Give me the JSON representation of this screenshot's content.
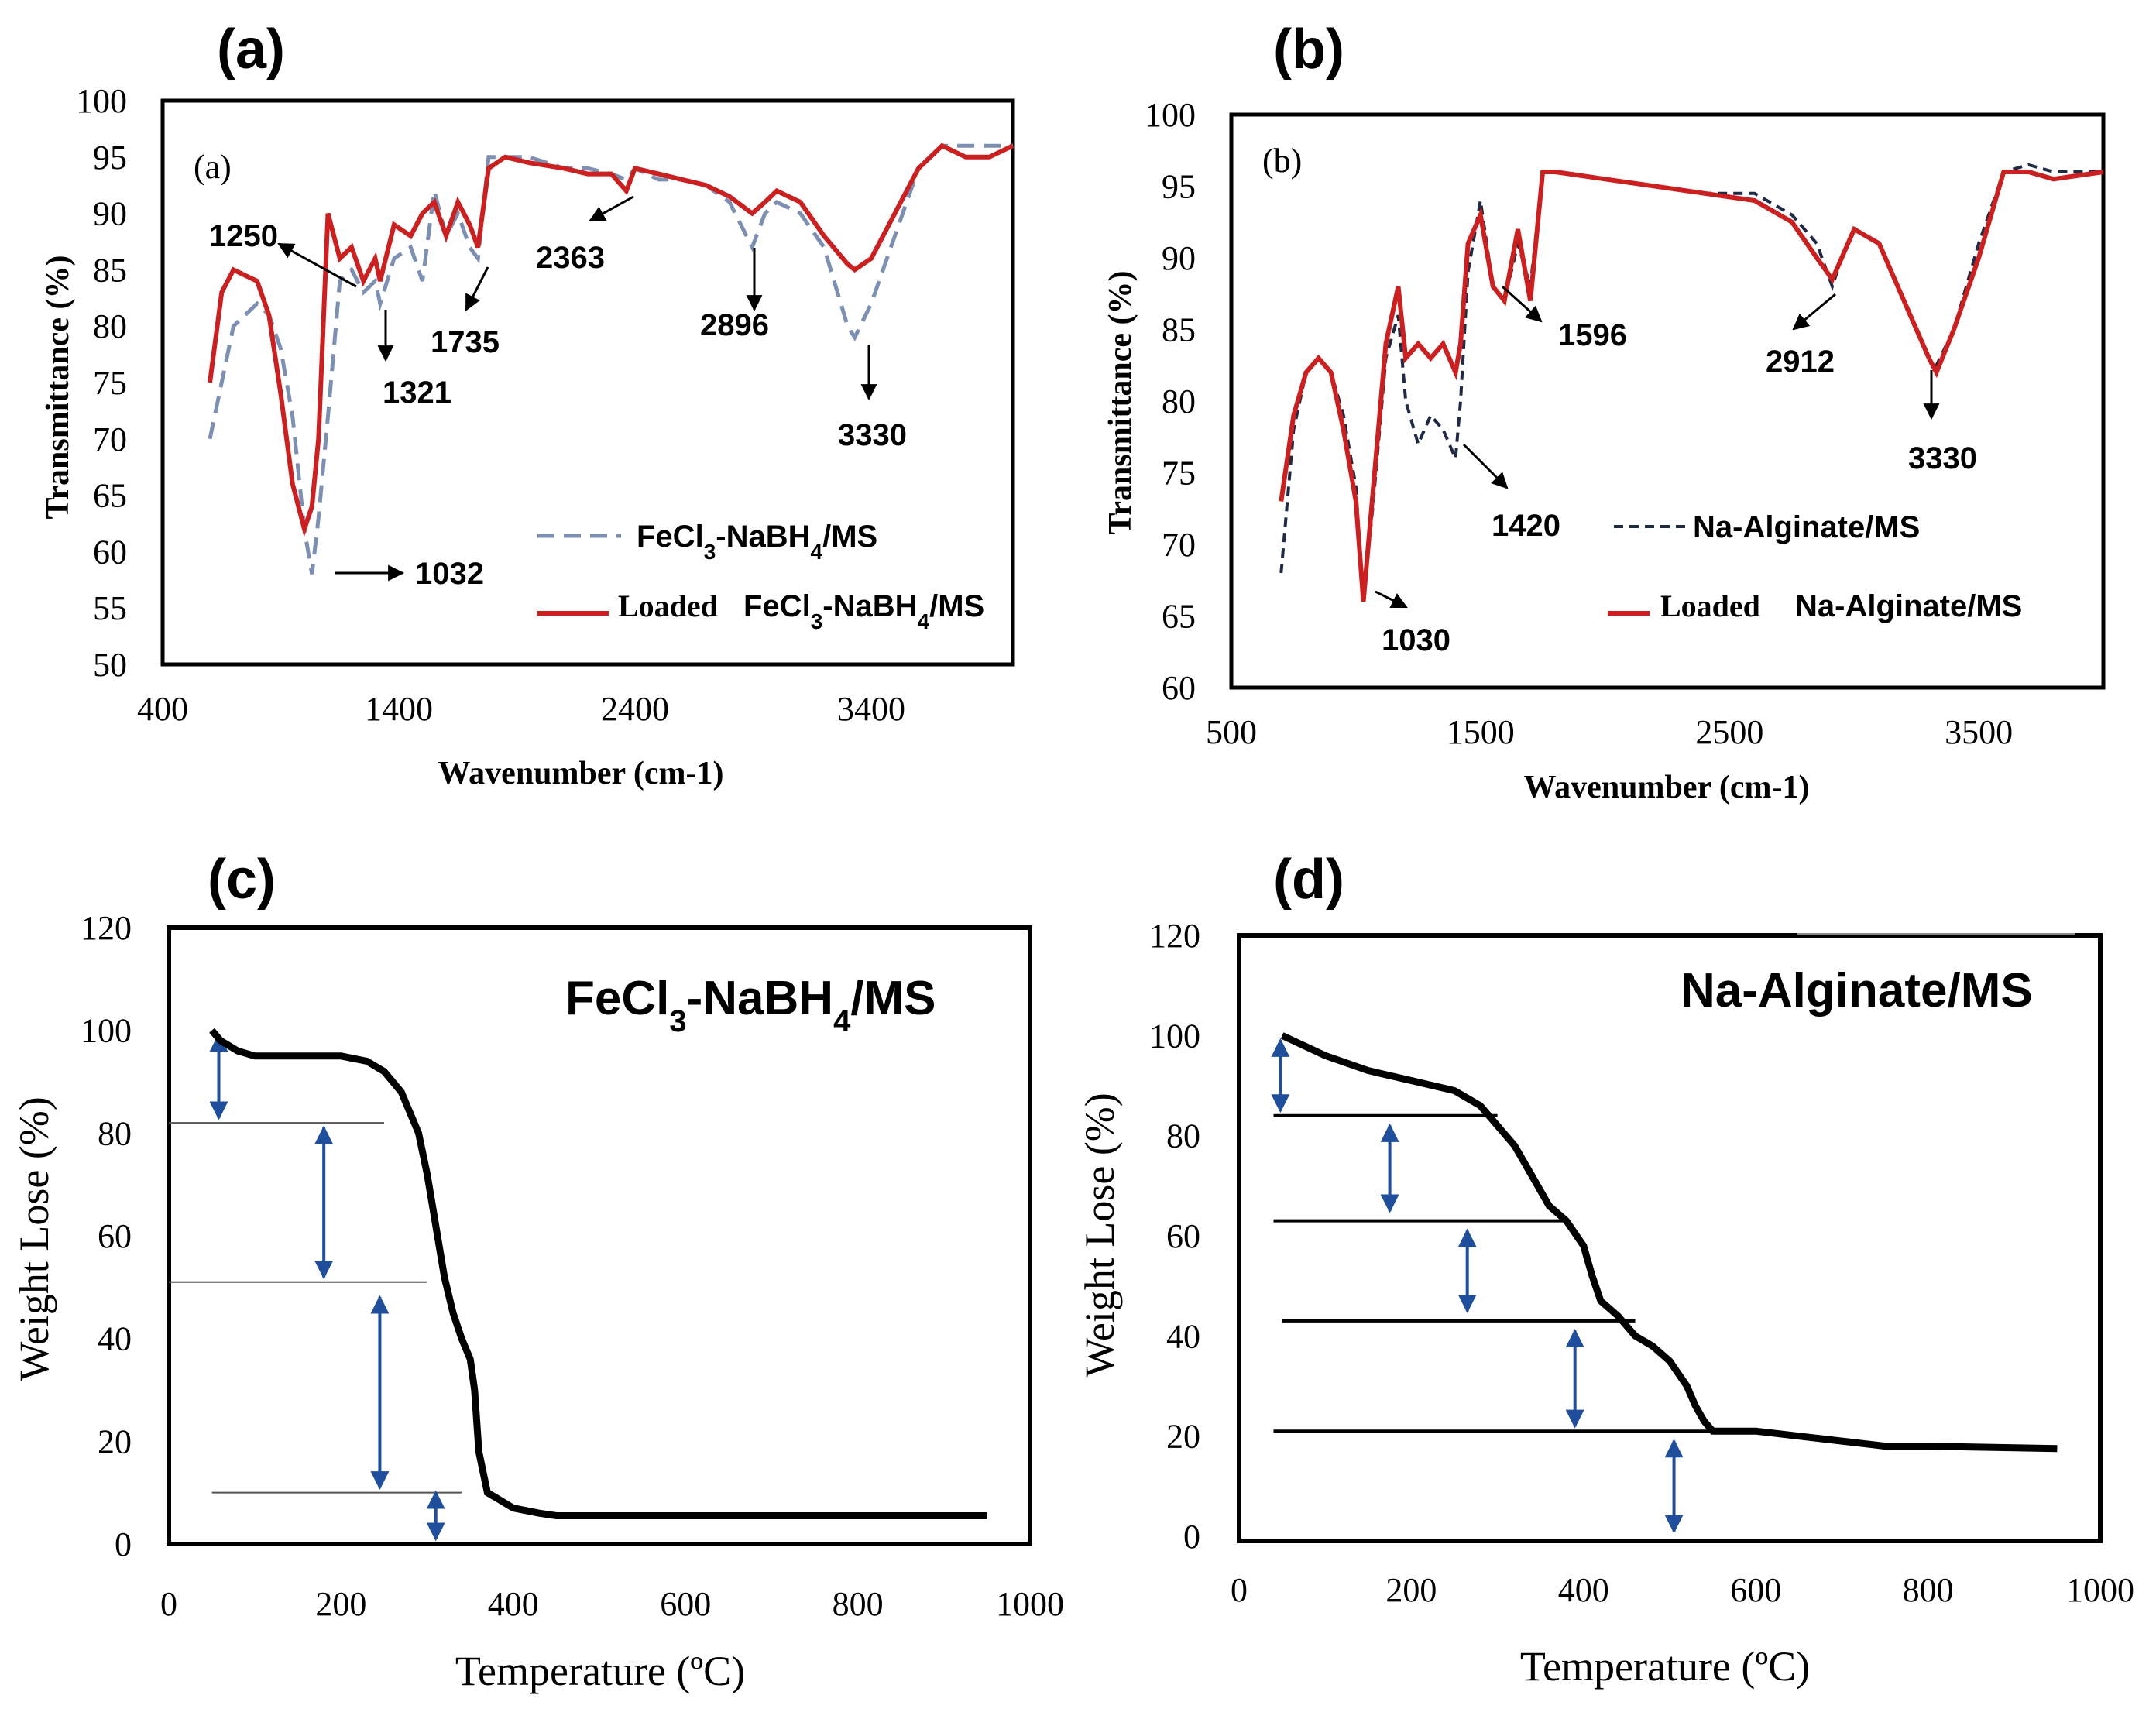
{
  "colors": {
    "red": "#cc1f1f",
    "blue_dashed": "#7d8fb3",
    "navy_dashed": "#1f2a44",
    "arrow_blue": "#1f4e9c",
    "black": "#000000"
  },
  "chart_data": [
    {
      "id": "a",
      "type": "line",
      "panel_label": "(a)",
      "inner_label": "(a)",
      "xlabel": "Wavenumber (cm-1)",
      "ylabel": "Transmittance (%)",
      "xlim": [
        400,
        4000
      ],
      "ylim": [
        50,
        100
      ],
      "xticks": [
        "400",
        "1400",
        "2400",
        "3400"
      ],
      "xtick_values": [
        400,
        1400,
        2400,
        3400
      ],
      "yticks": [
        "50",
        "55",
        "60",
        "65",
        "70",
        "75",
        "80",
        "85",
        "90",
        "95",
        "100"
      ],
      "ytick_values": [
        50,
        55,
        60,
        65,
        70,
        75,
        80,
        85,
        90,
        95,
        100
      ],
      "series": [
        {
          "name": "FeCl3-NaBH4/MS",
          "style": "dashed",
          "color": "#7d8fb3",
          "x": [
            600,
            700,
            800,
            850,
            900,
            950,
            1000,
            1032,
            1060,
            1100,
            1150,
            1200,
            1250,
            1300,
            1321,
            1380,
            1450,
            1500,
            1550,
            1600,
            1650,
            1700,
            1735,
            1780,
            1850,
            1950,
            2100,
            2200,
            2300,
            2363,
            2400,
            2500,
            2600,
            2700,
            2800,
            2896,
            2950,
            3000,
            3100,
            3200,
            3300,
            3330,
            3400,
            3500,
            3600,
            3700,
            3800,
            3900,
            4000
          ],
          "y": [
            70,
            80,
            82,
            81,
            78,
            72,
            62,
            58,
            63,
            72,
            84,
            85,
            83,
            84,
            82,
            86,
            87,
            84,
            92,
            88,
            90,
            87,
            86,
            95,
            95,
            95,
            94,
            94,
            93.5,
            93,
            94,
            93,
            93,
            92.5,
            91,
            87,
            90,
            91,
            90,
            87,
            80,
            79,
            82,
            88,
            94,
            96,
            96,
            96,
            96
          ]
        },
        {
          "name": "Loaded FeCl3-NaBH4/MS",
          "style": "solid",
          "color": "#cc1f1f",
          "x": [
            600,
            650,
            700,
            800,
            850,
            900,
            950,
            1000,
            1032,
            1060,
            1100,
            1150,
            1200,
            1250,
            1300,
            1321,
            1380,
            1450,
            1500,
            1550,
            1600,
            1650,
            1700,
            1735,
            1780,
            1850,
            1950,
            2100,
            2200,
            2300,
            2363,
            2400,
            2500,
            2600,
            2700,
            2800,
            2896,
            2950,
            3000,
            3100,
            3200,
            3300,
            3330,
            3400,
            3500,
            3600,
            3700,
            3800,
            3900,
            4000
          ],
          "y": [
            75,
            83,
            85,
            84,
            81,
            74,
            66,
            62,
            64,
            70,
            90,
            86,
            87,
            84,
            86,
            84,
            89,
            88,
            90,
            91,
            88,
            91,
            89,
            87,
            94,
            95,
            94.5,
            94,
            93.5,
            93.5,
            92,
            94,
            93.5,
            93,
            92.5,
            91.5,
            90,
            91,
            92,
            91,
            88,
            85.5,
            85,
            86,
            90,
            94,
            96,
            95,
            95,
            96
          ]
        }
      ],
      "annotations": [
        "1250",
        "1321",
        "1735",
        "2363",
        "2896",
        "3330",
        "1032"
      ],
      "legend": [
        {
          "prefix": "",
          "text": "FeCl3-NaBH4/MS"
        },
        {
          "prefix": "Loaded",
          "text": "FeCl3-NaBH4/MS"
        }
      ]
    },
    {
      "id": "b",
      "type": "line",
      "panel_label": "(b)",
      "inner_label": "(b)",
      "xlabel": "Wavenumber (cm-1)",
      "ylabel": "Transmittance (%)",
      "xlim": [
        500,
        4000
      ],
      "ylim": [
        60,
        100
      ],
      "xticks": [
        "500",
        "1500",
        "2500",
        "3500"
      ],
      "xtick_values": [
        500,
        1500,
        2500,
        3500
      ],
      "yticks": [
        "60",
        "65",
        "70",
        "75",
        "80",
        "85",
        "90",
        "95",
        "100"
      ],
      "ytick_values": [
        60,
        65,
        70,
        75,
        80,
        85,
        90,
        95,
        100
      ],
      "series": [
        {
          "name": "Na-Alginate/MS",
          "style": "dashed",
          "color": "#1f2a44",
          "x": [
            700,
            750,
            800,
            850,
            900,
            950,
            1000,
            1030,
            1070,
            1120,
            1170,
            1200,
            1250,
            1300,
            1350,
            1400,
            1420,
            1450,
            1500,
            1550,
            1596,
            1650,
            1700,
            1750,
            1800,
            2000,
            2200,
            2400,
            2600,
            2750,
            2850,
            2912,
            2950,
            3000,
            3100,
            3200,
            3300,
            3330,
            3400,
            3500,
            3600,
            3700,
            3800,
            4000
          ],
          "y": [
            68,
            78,
            82,
            83,
            82,
            79,
            74,
            66,
            73,
            83,
            86,
            80,
            77,
            79,
            78,
            76,
            80,
            89,
            94,
            88,
            87,
            91,
            88,
            96,
            96,
            95.5,
            95,
            94.5,
            94.5,
            93,
            91,
            88,
            90,
            92,
            91,
            87,
            83,
            82.5,
            85,
            91,
            96,
            96.5,
            96,
            96
          ]
        },
        {
          "name": "Loaded Na-Alginate/MS",
          "style": "solid",
          "color": "#cc1f1f",
          "x": [
            700,
            750,
            800,
            850,
            900,
            950,
            1000,
            1030,
            1070,
            1120,
            1170,
            1200,
            1250,
            1300,
            1350,
            1400,
            1420,
            1450,
            1500,
            1550,
            1596,
            1650,
            1700,
            1750,
            1800,
            2000,
            2200,
            2400,
            2600,
            2750,
            2850,
            2912,
            2950,
            3000,
            3100,
            3200,
            3300,
            3330,
            3400,
            3500,
            3600,
            3700,
            3800,
            4000
          ],
          "y": [
            73,
            79,
            82,
            83,
            82,
            78,
            73,
            66,
            74,
            84,
            88,
            83,
            84,
            83,
            84,
            82,
            84,
            91,
            93,
            88,
            87,
            92,
            87,
            96,
            96,
            95.5,
            95,
            94.5,
            94,
            92.5,
            90,
            88.5,
            90,
            92,
            91,
            87,
            83,
            82,
            85,
            90,
            96,
            96,
            95.5,
            96
          ]
        }
      ],
      "annotations": [
        "1596",
        "2912",
        "3330",
        "1420",
        "1030"
      ],
      "legend": [
        {
          "prefix": "",
          "text": "Na-Alginate/MS"
        },
        {
          "prefix": "Loaded",
          "text": "Na-Alginate/MS"
        }
      ]
    },
    {
      "id": "c",
      "type": "line",
      "panel_label": "(c)",
      "title": "FeCl3-NaBH4/MS",
      "xlabel": "Temperature (ºC)",
      "ylabel": "Weight Lose (%)",
      "xlim": [
        0,
        1000
      ],
      "ylim": [
        0,
        120
      ],
      "xticks": [
        "0",
        "200",
        "400",
        "600",
        "800",
        "1000"
      ],
      "xtick_values": [
        0,
        200,
        400,
        600,
        800,
        1000
      ],
      "yticks": [
        "0",
        "20",
        "40",
        "60",
        "80",
        "100",
        "120"
      ],
      "ytick_values": [
        0,
        20,
        40,
        60,
        80,
        100,
        120
      ],
      "series": [
        {
          "name": "FeCl3-NaBH4/MS",
          "style": "solid",
          "color": "#000000",
          "x": [
            50,
            60,
            80,
            100,
            150,
            200,
            230,
            250,
            270,
            290,
            300,
            310,
            320,
            330,
            340,
            350,
            355,
            360,
            370,
            380,
            400,
            430,
            450,
            500,
            600,
            700,
            800,
            950
          ],
          "y": [
            100,
            98,
            96,
            95,
            95,
            95,
            94,
            92,
            88,
            80,
            72,
            62,
            52,
            45,
            40,
            36,
            30,
            18,
            10,
            9,
            7,
            6,
            5.5,
            5.5,
            5.5,
            5.5,
            5.5,
            5.5
          ]
        }
      ],
      "step_levels": [
        82,
        51,
        10
      ],
      "step_arrows": [
        [
          100,
          82
        ],
        [
          82,
          51
        ],
        [
          49,
          10
        ],
        [
          11,
          0
        ]
      ]
    },
    {
      "id": "d",
      "type": "line",
      "panel_label": "(d)",
      "title": "Na-Alginate/MS",
      "xlabel": "Temperature (ºC)",
      "ylabel": "Weight Lose (%)",
      "xlim": [
        0,
        1000
      ],
      "ylim": [
        0,
        120
      ],
      "xticks": [
        "0",
        "200",
        "400",
        "600",
        "800",
        "1000"
      ],
      "xtick_values": [
        0,
        200,
        400,
        600,
        800,
        1000
      ],
      "yticks": [
        "0",
        "20",
        "40",
        "60",
        "80",
        "100",
        "120"
      ],
      "ytick_values": [
        0,
        20,
        40,
        60,
        80,
        100,
        120
      ],
      "series": [
        {
          "name": "Na-Alginate/MS",
          "style": "solid",
          "color": "#000000",
          "x": [
            50,
            100,
            150,
            200,
            250,
            280,
            300,
            320,
            340,
            360,
            380,
            400,
            410,
            420,
            440,
            460,
            480,
            500,
            520,
            530,
            540,
            550,
            600,
            650,
            700,
            750,
            800,
            950
          ],
          "y": [
            100,
            96,
            93,
            91,
            89,
            86,
            82,
            78,
            72,
            66,
            63,
            58,
            52,
            47,
            44,
            40,
            38,
            35,
            30,
            26,
            23,
            21,
            21,
            20,
            19,
            18,
            18,
            17.5
          ]
        }
      ],
      "step_levels": [
        84,
        63,
        43,
        21
      ],
      "step_arrows": [
        [
          100,
          84
        ],
        [
          83,
          64
        ],
        [
          62,
          44
        ],
        [
          42,
          21
        ],
        [
          20,
          0
        ]
      ]
    }
  ]
}
